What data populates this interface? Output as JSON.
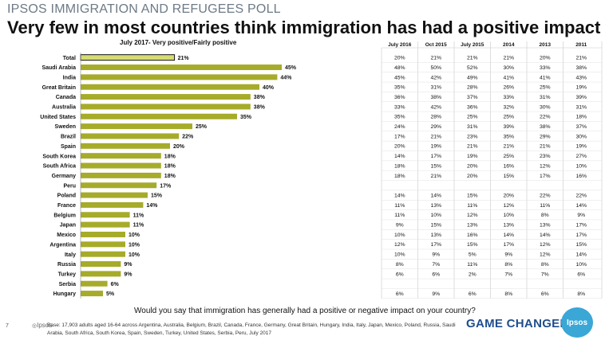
{
  "header": {
    "kicker": "IPSOS IMMIGRATION AND REFUGEES POLL",
    "headline": "Very few in most countries think immigration has had a positive impact",
    "subtitle": "July 2017- Very positive/Fairly positive"
  },
  "footer": {
    "question": "Would you say that immigration has generally had a positive or negative impact on your country?",
    "base": "Base: 17,903 adults aged 16-64 across Argentina, Australia, Belgium, Brazil, Canada, France, Germany, Great Britain, Hungary, India, Italy, Japan, Mexico, Poland, Russia, Saudi Arabia, South Africa, South Korea, Spain, Sweden, Turkey, United States, Serbia, Peru, July 2017",
    "page_number": "7",
    "brand_small": "Ipsos",
    "brand_tagline": "GAME CHANGERS",
    "logo_text": "Ipsos"
  },
  "colors": {
    "bar": "#a6ab2a",
    "bar_total": "#d6db72",
    "bar_outline": "#555555",
    "grid": "#c8c8c8"
  },
  "chart_data": {
    "type": "bar",
    "orientation": "horizontal",
    "title": "July 2017- Very positive/Fairly positive",
    "xlim": [
      0,
      55
    ],
    "categories": [
      "Total",
      "Saudi Arabia",
      "India",
      "Great Britain",
      "Canada",
      "Australia",
      "United States",
      "Sweden",
      "Brazil",
      "Spain",
      "South Korea",
      "South Africa",
      "Germany",
      "Peru",
      "Poland",
      "France",
      "Belgium",
      "Japan",
      "Mexico",
      "Argentina",
      "Italy",
      "Russia",
      "Turkey",
      "Serbia",
      "Hungary"
    ],
    "values": [
      21,
      45,
      44,
      40,
      38,
      38,
      35,
      25,
      22,
      20,
      18,
      18,
      18,
      17,
      15,
      14,
      11,
      11,
      10,
      10,
      10,
      9,
      9,
      6,
      5
    ],
    "value_labels": [
      "21%",
      "45%",
      "44%",
      "40%",
      "38%",
      "38%",
      "35%",
      "25%",
      "22%",
      "20%",
      "18%",
      "18%",
      "18%",
      "17%",
      "15%",
      "14%",
      "11%",
      "11%",
      "10%",
      "10%",
      "10%",
      "9%",
      "9%",
      "6%",
      "5%"
    ],
    "table": {
      "columns": [
        "July 2016",
        "Oct 2015",
        "July 2015",
        "2014",
        "2013",
        "2011"
      ],
      "rows": [
        [
          "20%",
          "21%",
          "21%",
          "21%",
          "20%",
          "21%"
        ],
        [
          "48%",
          "50%",
          "52%",
          "30%",
          "33%",
          "38%"
        ],
        [
          "45%",
          "42%",
          "49%",
          "41%",
          "41%",
          "43%"
        ],
        [
          "35%",
          "31%",
          "28%",
          "26%",
          "25%",
          "19%"
        ],
        [
          "36%",
          "38%",
          "37%",
          "33%",
          "31%",
          "39%"
        ],
        [
          "33%",
          "42%",
          "36%",
          "32%",
          "30%",
          "31%"
        ],
        [
          "35%",
          "28%",
          "25%",
          "25%",
          "22%",
          "18%"
        ],
        [
          "24%",
          "29%",
          "31%",
          "39%",
          "38%",
          "37%"
        ],
        [
          "17%",
          "21%",
          "23%",
          "35%",
          "29%",
          "30%"
        ],
        [
          "20%",
          "19%",
          "21%",
          "21%",
          "21%",
          "19%"
        ],
        [
          "14%",
          "17%",
          "19%",
          "25%",
          "23%",
          "27%"
        ],
        [
          "18%",
          "15%",
          "20%",
          "16%",
          "12%",
          "10%"
        ],
        [
          "18%",
          "21%",
          "20%",
          "15%",
          "17%",
          "16%"
        ],
        [
          "",
          "",
          "",
          "",
          "",
          ""
        ],
        [
          "14%",
          "14%",
          "15%",
          "20%",
          "22%",
          "22%"
        ],
        [
          "11%",
          "13%",
          "11%",
          "12%",
          "11%",
          "14%"
        ],
        [
          "11%",
          "10%",
          "12%",
          "10%",
          "8%",
          "9%"
        ],
        [
          "9%",
          "15%",
          "13%",
          "13%",
          "13%",
          "17%"
        ],
        [
          "10%",
          "13%",
          "16%",
          "14%",
          "14%",
          "17%"
        ],
        [
          "12%",
          "17%",
          "15%",
          "17%",
          "12%",
          "15%"
        ],
        [
          "10%",
          "9%",
          "5%",
          "9%",
          "12%",
          "14%"
        ],
        [
          "8%",
          "7%",
          "11%",
          "8%",
          "8%",
          "10%"
        ],
        [
          "6%",
          "6%",
          "2%",
          "7%",
          "7%",
          "6%"
        ],
        [
          "",
          "",
          "",
          "",
          "",
          ""
        ],
        [
          "6%",
          "9%",
          "6%",
          "8%",
          "6%",
          "8%"
        ]
      ]
    }
  }
}
